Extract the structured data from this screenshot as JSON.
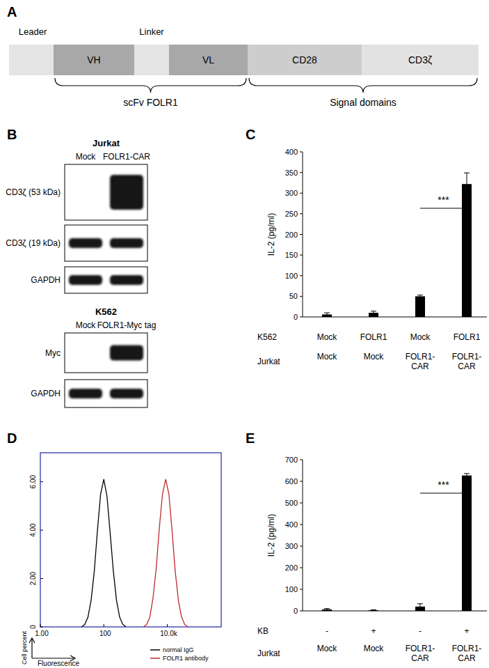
{
  "construct": {
    "title": "A",
    "segments": [
      {
        "label": "Leader",
        "label_position": "above",
        "color": "#e4e4e4"
      },
      {
        "label": "VH",
        "label_position": "inside",
        "color": "#a8a8a8"
      },
      {
        "label": "Linker",
        "label_position": "above",
        "color": "#e4e4e4"
      },
      {
        "label": "VL",
        "label_position": "inside",
        "color": "#a8a8a8"
      },
      {
        "label": "CD28",
        "label_position": "inside",
        "color": "#cdcdcd"
      },
      {
        "label": "CD3ζ",
        "label_position": "inside",
        "color": "#e2e2e2"
      }
    ],
    "groups": [
      {
        "label": "scFv FOLR1",
        "from": 1,
        "to": 3
      },
      {
        "label": "Signal domains",
        "from": 4,
        "to": 5
      }
    ]
  },
  "blots": {
    "title": "B",
    "panels": [
      {
        "cell_line": "Jurkat",
        "lanes": [
          "Mock",
          "FOLR1-CAR"
        ],
        "rows": [
          {
            "label": "CD3ζ (53 kDa)",
            "bands": [
              false,
              true
            ]
          },
          {
            "label": "CD3ζ (19 kDa)",
            "bands": [
              true,
              true
            ]
          },
          {
            "label": "GAPDH",
            "bands": [
              true,
              true
            ]
          }
        ]
      },
      {
        "cell_line": "K562",
        "lanes": [
          "Mock",
          "FOLR1-Myc tag"
        ],
        "rows": [
          {
            "label": "Myc",
            "bands": [
              false,
              true
            ]
          },
          {
            "label": "GAPDH",
            "bands": [
              true,
              true
            ]
          }
        ]
      }
    ]
  },
  "chart_data": [
    {
      "type": "bar",
      "title": "C",
      "y_label": "IL-2 (pg/ml)",
      "category_rows": [
        "K562",
        "Jurkat"
      ],
      "categories": [
        [
          "Mock",
          "Mock"
        ],
        [
          "FOLR1",
          "Mock"
        ],
        [
          "Mock",
          "FOLR1-CAR"
        ],
        [
          "FOLR1",
          "FOLR1-CAR"
        ]
      ],
      "values": [
        6,
        10,
        50,
        322
      ],
      "errors": [
        4,
        4,
        3,
        27
      ],
      "color": "#000000",
      "ylim": [
        0,
        400
      ],
      "yticks": [
        0,
        50,
        100,
        150,
        200,
        250,
        300,
        350,
        400
      ],
      "grid": false,
      "annotations": [
        {
          "text": "***",
          "from": 2,
          "to": 3
        }
      ]
    },
    {
      "type": "line",
      "title": "D",
      "log": "x",
      "x_label": "Fluorescence",
      "y_label": "Cell percent",
      "xlim": [
        1,
        500000
      ],
      "ylim": [
        0,
        7.2
      ],
      "xticks": [
        {
          "value": 1,
          "label": "1.00"
        },
        100,
        {
          "value": 10000,
          "label": "10.0k"
        }
      ],
      "yticks": [
        0,
        {
          "value": 2,
          "label": "2.00"
        },
        {
          "value": 4,
          "label": "4.00"
        },
        {
          "value": 6,
          "label": "6.00"
        }
      ],
      "grid": false,
      "legend": "lower right",
      "series": [
        {
          "name": "normal IgG",
          "color": "#000000",
          "x": [
            20,
            25.1,
            31.6,
            39.8,
            50.1,
            63.1,
            79.4,
            100,
            126,
            158,
            200,
            251,
            316,
            398,
            501
          ],
          "values": [
            0,
            0.1,
            0.4,
            1.1,
            2.3,
            4.0,
            5.5,
            6.1,
            5.4,
            3.9,
            2.3,
            1.1,
            0.4,
            0.1,
            0
          ]
        },
        {
          "name": "FOLR1 antibody",
          "color": "#c0282d",
          "x": [
            1778,
            2239,
            2818,
            3548,
            4467,
            5623,
            7079,
            8913,
            11220,
            14125,
            17783,
            22387,
            28184,
            35481,
            44668
          ],
          "values": [
            0,
            0.1,
            0.4,
            1.2,
            2.4,
            4.1,
            5.5,
            6.1,
            5.5,
            4.0,
            2.3,
            1.1,
            0.4,
            0.1,
            0
          ]
        }
      ]
    },
    {
      "type": "bar",
      "title": "E",
      "y_label": "IL-2 (pg/ml)",
      "category_rows": [
        "KB",
        "Jurkat"
      ],
      "categories": [
        [
          "-",
          "Mock"
        ],
        [
          "+",
          "Mock"
        ],
        [
          "-",
          "FOLR1-CAR"
        ],
        [
          "+",
          "FOLR1-CAR"
        ]
      ],
      "values": [
        7,
        3,
        20,
        627
      ],
      "errors": [
        4,
        2,
        13,
        9
      ],
      "color": "#000000",
      "ylim": [
        0,
        700
      ],
      "yticks": [
        0,
        100,
        200,
        300,
        400,
        500,
        600,
        700
      ],
      "grid": false,
      "annotations": [
        {
          "text": "***",
          "from": 2,
          "to": 3
        }
      ]
    }
  ]
}
